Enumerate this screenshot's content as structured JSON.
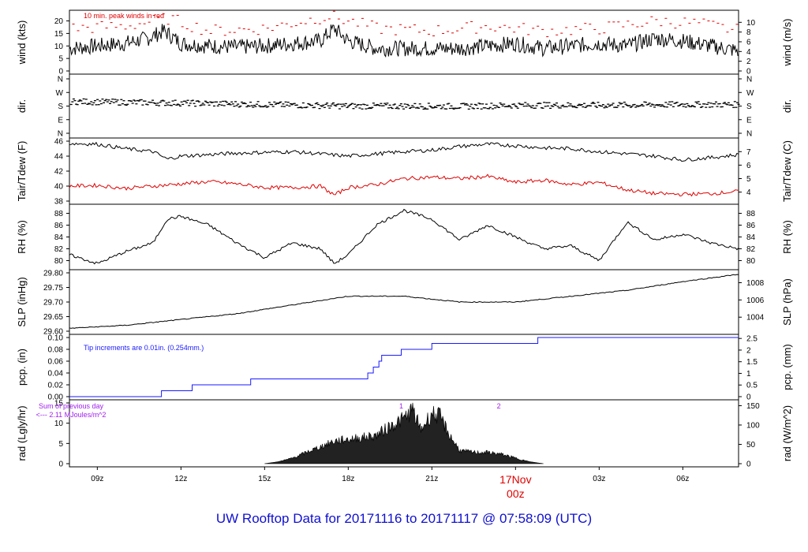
{
  "title": "UW Rooftop Data for 20171116  to  20171117 @ 07:58:09  (UTC)",
  "colors": {
    "black": "#000000",
    "red": "#e00000",
    "blue": "#1a1aff",
    "purple": "#a020f0",
    "title": "#1010d0"
  },
  "time_axis": {
    "ticks": [
      {
        "h": 9,
        "label": "09z"
      },
      {
        "h": 12,
        "label": "12z"
      },
      {
        "h": 15,
        "label": "15z"
      },
      {
        "h": 18,
        "label": "18z"
      },
      {
        "h": 21,
        "label": "21z"
      },
      {
        "h": 27,
        "label": "03z"
      },
      {
        "h": 30,
        "label": "06z"
      }
    ],
    "date_label": {
      "h": 24,
      "line1": "17Nov",
      "line2": "00z"
    },
    "range_hours": [
      8.0,
      32.0
    ]
  },
  "chart_data": [
    {
      "type": "line",
      "name": "wind",
      "ylabel_left": "wind (kts)",
      "ylabel_right": "wind (m/s)",
      "ylim": [
        0,
        23
      ],
      "left_ticks": [
        "0",
        "5",
        "10",
        "15",
        "20"
      ],
      "left_tick_values": [
        0,
        5,
        10,
        15,
        20
      ],
      "right_ticks": [
        "0",
        "2",
        "4",
        "6",
        "8",
        "10"
      ],
      "right_tick_values": [
        0,
        2,
        4,
        6,
        8,
        10
      ],
      "note": "10 min. peak winds in red",
      "series": [
        {
          "color": "black",
          "values": [
            [
              8.0,
              9
            ],
            [
              9,
              10
            ],
            [
              10,
              11
            ],
            [
              10.8,
              13
            ],
            [
              11.4,
              16
            ],
            [
              12,
              11
            ],
            [
              13,
              10
            ],
            [
              14,
              9.5
            ],
            [
              15,
              10
            ],
            [
              16,
              11
            ],
            [
              17,
              12
            ],
            [
              17.5,
              17
            ],
            [
              18,
              12
            ],
            [
              19,
              9
            ],
            [
              20,
              9
            ],
            [
              21,
              9
            ],
            [
              22,
              9
            ],
            [
              23,
              10
            ],
            [
              24,
              11
            ],
            [
              25,
              9
            ],
            [
              26,
              10
            ],
            [
              27,
              11
            ],
            [
              28,
              10
            ],
            [
              29,
              13
            ],
            [
              30,
              12
            ],
            [
              31,
              10
            ],
            [
              32,
              8
            ]
          ]
        },
        {
          "color": "red",
          "style": "dashes",
          "values": [
            [
              8,
              17
            ],
            [
              10,
              18
            ],
            [
              11.5,
              21
            ],
            [
              13,
              16
            ],
            [
              15,
              17
            ],
            [
              17.3,
              22
            ],
            [
              19,
              17
            ],
            [
              21,
              16
            ],
            [
              23,
              18
            ],
            [
              25,
              16
            ],
            [
              27,
              17
            ],
            [
              29,
              20
            ],
            [
              30.5,
              19
            ],
            [
              32,
              16
            ]
          ]
        }
      ]
    },
    {
      "type": "scatter",
      "name": "dir",
      "ylabel_left": "dir.",
      "ylabel_right": "dir.",
      "ylim": [
        0,
        360
      ],
      "left_ticks": [
        "N",
        "E",
        "S",
        "W",
        "N"
      ],
      "right_ticks": [
        "N",
        "E",
        "S",
        "W",
        "N"
      ],
      "tick_values": [
        0,
        90,
        180,
        270,
        360
      ],
      "series": [
        {
          "color": "black",
          "values": [
            [
              8,
              210
            ],
            [
              12,
              200
            ],
            [
              15,
              190
            ],
            [
              18,
              180
            ],
            [
              20,
              180
            ],
            [
              22,
              178
            ],
            [
              24,
              185
            ],
            [
              27,
              185
            ],
            [
              30,
              190
            ],
            [
              32,
              190
            ]
          ]
        }
      ]
    },
    {
      "type": "line",
      "name": "temperature",
      "ylabel_left": "Tair/Tdew (F)",
      "ylabel_right": "Tair/Tdew (C)",
      "ylim": [
        38,
        46
      ],
      "left_ticks": [
        "38",
        "40",
        "42",
        "44",
        "46"
      ],
      "left_tick_values": [
        38,
        40,
        42,
        44,
        46
      ],
      "right_ticks": [
        "4",
        "5",
        "6",
        "7"
      ],
      "right_tick_values": [
        4,
        5,
        6,
        7
      ],
      "series": [
        {
          "name": "Tair",
          "color": "black",
          "values": [
            [
              8,
              45.7
            ],
            [
              9,
              45.6
            ],
            [
              10,
              45.0
            ],
            [
              11,
              44.6
            ],
            [
              11.5,
              43.6
            ],
            [
              12,
              44.0
            ],
            [
              13,
              44.2
            ],
            [
              14,
              44.4
            ],
            [
              15,
              44.5
            ],
            [
              16,
              44.6
            ],
            [
              17,
              44.3
            ],
            [
              18,
              44.0
            ],
            [
              19,
              44.3
            ],
            [
              20,
              44.6
            ],
            [
              21,
              44.8
            ],
            [
              22,
              45.3
            ],
            [
              23,
              45.6
            ],
            [
              24,
              45.4
            ],
            [
              25,
              45.1
            ],
            [
              26,
              45.0
            ],
            [
              27,
              44.6
            ],
            [
              28,
              44.3
            ],
            [
              29,
              44.0
            ],
            [
              30,
              43.5
            ],
            [
              31,
              43.8
            ],
            [
              32,
              44.2
            ]
          ]
        },
        {
          "name": "Tdew",
          "color": "red",
          "values": [
            [
              8,
              40.0
            ],
            [
              9,
              40.1
            ],
            [
              10,
              39.7
            ],
            [
              11,
              40.0
            ],
            [
              12,
              40.3
            ],
            [
              13,
              40.6
            ],
            [
              14,
              40.3
            ],
            [
              15,
              39.8
            ],
            [
              16,
              39.8
            ],
            [
              17,
              40.0
            ],
            [
              17.5,
              38.8
            ],
            [
              18,
              39.8
            ],
            [
              19,
              40.2
            ],
            [
              20,
              41.0
            ],
            [
              21,
              41.2
            ],
            [
              22,
              41.0
            ],
            [
              23,
              41.3
            ],
            [
              24,
              40.5
            ],
            [
              25,
              40.8
            ],
            [
              26,
              40.2
            ],
            [
              27,
              40.5
            ],
            [
              28,
              39.5
            ],
            [
              29,
              39.0
            ],
            [
              30,
              38.9
            ],
            [
              31,
              39.0
            ],
            [
              32,
              39.3
            ]
          ]
        }
      ]
    },
    {
      "type": "line",
      "name": "rh",
      "ylabel_left": "RH (%)",
      "ylabel_right": "RH (%)",
      "ylim": [
        79,
        89
      ],
      "left_ticks": [
        "80",
        "82",
        "84",
        "86",
        "88"
      ],
      "right_ticks": [
        "80",
        "82",
        "84",
        "86",
        "88"
      ],
      "tick_values": [
        80,
        82,
        84,
        86,
        88
      ],
      "series": [
        {
          "color": "black",
          "values": [
            [
              8,
              81
            ],
            [
              9,
              79.5
            ],
            [
              10,
              81.5
            ],
            [
              11,
              83
            ],
            [
              11.5,
              87
            ],
            [
              12,
              87.5
            ],
            [
              13,
              86
            ],
            [
              14,
              83
            ],
            [
              15,
              80.5
            ],
            [
              16,
              83
            ],
            [
              17,
              82
            ],
            [
              17.5,
              79.5
            ],
            [
              18,
              81
            ],
            [
              19,
              86
            ],
            [
              20,
              88.5
            ],
            [
              21,
              87
            ],
            [
              22,
              83.5
            ],
            [
              23,
              86
            ],
            [
              24,
              84
            ],
            [
              25,
              82
            ],
            [
              26,
              82.5
            ],
            [
              27,
              80
            ],
            [
              28,
              86.5
            ],
            [
              29,
              83.5
            ],
            [
              30,
              84.5
            ],
            [
              31,
              83
            ],
            [
              32,
              82
            ]
          ]
        }
      ]
    },
    {
      "type": "line",
      "name": "slp",
      "ylabel_left": "SLP (inHg)",
      "ylabel_right": "SLP (hPa)",
      "ylim": [
        29.6,
        29.8
      ],
      "left_ticks": [
        "29.60",
        "29.65",
        "29.70",
        "29.75",
        "29.80"
      ],
      "left_tick_values": [
        29.6,
        29.65,
        29.7,
        29.75,
        29.8
      ],
      "right_ticks": [
        "1004",
        "1006",
        "1008"
      ],
      "right_tick_values": [
        1004,
        1006,
        1008
      ],
      "series": [
        {
          "color": "black",
          "values": [
            [
              8,
              29.61
            ],
            [
              10,
              29.62
            ],
            [
              12,
              29.64
            ],
            [
              14,
              29.66
            ],
            [
              16,
              29.69
            ],
            [
              18,
              29.72
            ],
            [
              20,
              29.72
            ],
            [
              22,
              29.7
            ],
            [
              24,
              29.7
            ],
            [
              26,
              29.72
            ],
            [
              28,
              29.74
            ],
            [
              30,
              29.77
            ],
            [
              32,
              29.795
            ]
          ]
        }
      ]
    },
    {
      "type": "line",
      "name": "pcp",
      "ylabel_left": "pcp. (in)",
      "ylabel_right": "pcp. (mm)",
      "ylim": [
        0,
        0.1
      ],
      "left_ticks": [
        "0.00",
        "0.02",
        "0.04",
        "0.06",
        "0.08",
        "0.10"
      ],
      "left_tick_values": [
        0,
        0.02,
        0.04,
        0.06,
        0.08,
        0.1
      ],
      "right_ticks": [
        "0",
        "0.5",
        "1",
        "1.5",
        "2",
        "2.5"
      ],
      "right_tick_values": [
        0,
        0.5,
        1,
        1.5,
        2,
        2.5
      ],
      "note": "Tip increments are 0.01in. (0.254mm.)",
      "series": [
        {
          "color": "blue",
          "step": true,
          "values": [
            [
              8,
              0
            ],
            [
              11.3,
              0
            ],
            [
              11.3,
              0.01
            ],
            [
              12.4,
              0.01
            ],
            [
              12.4,
              0.02
            ],
            [
              14.5,
              0.02
            ],
            [
              14.5,
              0.03
            ],
            [
              18.7,
              0.03
            ],
            [
              18.7,
              0.04
            ],
            [
              18.9,
              0.04
            ],
            [
              18.9,
              0.05
            ],
            [
              19.1,
              0.05
            ],
            [
              19.1,
              0.06
            ],
            [
              19.2,
              0.06
            ],
            [
              19.2,
              0.07
            ],
            [
              19.9,
              0.07
            ],
            [
              19.9,
              0.08
            ],
            [
              21.0,
              0.08
            ],
            [
              21.0,
              0.09
            ],
            [
              24.8,
              0.09
            ],
            [
              24.8,
              0.1
            ],
            [
              32,
              0.1
            ]
          ]
        }
      ]
    },
    {
      "type": "area",
      "name": "rad",
      "ylabel_left": "rad (Lgly/hr)",
      "ylabel_right": "rad (W/m^2)",
      "ylim": [
        0,
        15
      ],
      "left_ticks": [
        "0",
        "5",
        "10",
        "15"
      ],
      "left_tick_values": [
        0,
        5,
        10,
        15
      ],
      "right_ticks": [
        "0",
        "50",
        "100",
        "150"
      ],
      "right_tick_values": [
        0,
        50,
        100,
        150
      ],
      "note_line1": "Sum of previous day",
      "note_line2": "<--- 2.11 MJoules/m^2",
      "markers": [
        {
          "h": 19.9,
          "label": "1"
        },
        {
          "h": 23.4,
          "label": "2"
        }
      ],
      "series": [
        {
          "color": "black",
          "values": [
            [
              15.0,
              0
            ],
            [
              15.5,
              0.5
            ],
            [
              16,
              1.5
            ],
            [
              16.5,
              3
            ],
            [
              17,
              4.5
            ],
            [
              17.5,
              6
            ],
            [
              18,
              6.5
            ],
            [
              18.5,
              7
            ],
            [
              19,
              7.5
            ],
            [
              19.5,
              10
            ],
            [
              20,
              12
            ],
            [
              20.3,
              14.5
            ],
            [
              20.6,
              9
            ],
            [
              21,
              13.5
            ],
            [
              21.3,
              12.5
            ],
            [
              21.6,
              8
            ],
            [
              22,
              3.5
            ],
            [
              22.5,
              3
            ],
            [
              23,
              3
            ],
            [
              23.5,
              2.5
            ],
            [
              24,
              1.5
            ],
            [
              24.5,
              0.5
            ],
            [
              25,
              0
            ]
          ]
        }
      ]
    }
  ]
}
